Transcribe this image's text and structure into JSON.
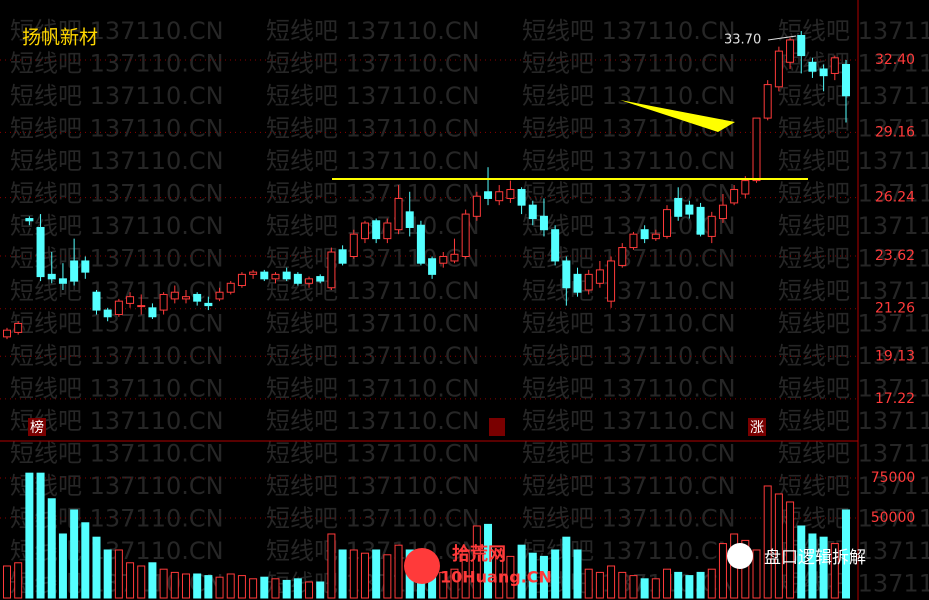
{
  "chart_data": {
    "type": "candlestick",
    "title": "扬帆新材",
    "watermark": "短线吧 137110.CN",
    "high_label": "33.70",
    "markers": [
      "榜",
      "",
      "涨"
    ],
    "logo_left": "拾荒网",
    "logo_left_url": "10Huang.CN",
    "logo_right": "盘口逻辑拆解",
    "up_color": "#ff3a3a",
    "down_color": "#54ffff",
    "open": [
      20.0,
      20.2,
      25.3,
      24.9,
      22.8,
      22.6,
      23.4,
      23.4,
      22.0,
      21.2,
      21.0,
      21.5,
      21.4,
      21.3,
      21.2,
      21.7,
      21.7,
      21.9,
      21.5,
      21.7,
      22.0,
      22.3,
      22.8,
      22.9,
      22.6,
      22.9,
      22.8,
      22.4,
      22.7,
      22.2,
      23.9,
      23.6,
      24.4,
      25.2,
      24.4,
      24.8,
      25.6,
      25.0,
      23.5,
      23.3,
      23.4,
      23.6,
      25.4,
      26.5,
      26.1,
      26.2,
      26.6,
      25.9,
      25.4,
      24.8,
      23.4,
      22.8,
      22.1,
      22.4,
      21.6,
      23.2,
      24.0,
      24.8,
      24.4,
      24.5,
      26.2,
      25.9,
      25.8,
      24.5,
      25.3,
      26.0,
      26.4,
      27.0,
      29.8,
      31.2,
      32.3,
      33.5,
      32.3,
      32.0,
      31.8,
      32.2
    ],
    "high": [
      20.4,
      20.7,
      25.4,
      25.5,
      23.8,
      23.3,
      24.4,
      23.6,
      22.1,
      21.3,
      21.7,
      22.0,
      21.9,
      21.5,
      22.0,
      22.3,
      22.1,
      22.0,
      21.8,
      22.2,
      22.5,
      22.9,
      23.0,
      23.0,
      22.9,
      23.1,
      22.9,
      22.7,
      22.8,
      24.0,
      24.1,
      24.8,
      25.2,
      25.3,
      25.3,
      26.8,
      26.5,
      25.2,
      23.6,
      23.8,
      24.4,
      25.7,
      26.5,
      27.6,
      26.8,
      27.0,
      26.7,
      26.1,
      26.2,
      25.0,
      23.6,
      23.1,
      23.0,
      23.4,
      23.6,
      24.2,
      24.7,
      25.0,
      24.8,
      25.9,
      26.7,
      26.1,
      26.0,
      25.6,
      26.4,
      26.8,
      27.2,
      29.8,
      31.5,
      33.0,
      33.4,
      33.7,
      32.5,
      32.2,
      32.6,
      32.4
    ],
    "low": [
      19.9,
      20.1,
      25.0,
      22.5,
      22.4,
      22.1,
      22.3,
      22.6,
      21.0,
      20.7,
      20.9,
      21.3,
      21.0,
      20.8,
      21.0,
      21.5,
      21.5,
      21.4,
      21.2,
      21.6,
      21.9,
      22.2,
      22.6,
      22.5,
      22.4,
      22.5,
      22.3,
      22.2,
      22.4,
      22.1,
      23.2,
      23.5,
      24.2,
      24.2,
      24.2,
      24.6,
      24.5,
      23.2,
      22.6,
      23.1,
      23.3,
      23.5,
      25.2,
      25.9,
      25.9,
      26.0,
      25.5,
      25.0,
      24.5,
      23.2,
      21.4,
      21.8,
      21.9,
      22.2,
      21.3,
      23.1,
      23.9,
      24.2,
      24.3,
      24.4,
      25.2,
      25.3,
      24.5,
      24.2,
      25.1,
      25.9,
      26.2,
      26.9,
      29.7,
      31.0,
      32.0,
      31.8,
      31.6,
      31.0,
      31.5,
      29.6
    ],
    "close": [
      20.3,
      20.6,
      25.2,
      22.7,
      22.6,
      22.4,
      22.5,
      22.9,
      21.2,
      20.9,
      21.6,
      21.8,
      21.4,
      20.9,
      21.9,
      22.0,
      21.8,
      21.6,
      21.4,
      22.0,
      22.4,
      22.8,
      22.9,
      22.6,
      22.8,
      22.6,
      22.4,
      22.6,
      22.5,
      23.8,
      23.3,
      24.6,
      25.1,
      24.4,
      25.1,
      26.2,
      24.9,
      23.3,
      22.8,
      23.6,
      23.7,
      25.5,
      26.3,
      26.2,
      26.5,
      26.6,
      25.9,
      25.3,
      24.8,
      23.4,
      22.2,
      22.0,
      22.8,
      23.0,
      23.4,
      24.0,
      24.6,
      24.4,
      24.6,
      25.7,
      25.4,
      25.5,
      24.6,
      25.4,
      25.9,
      26.6,
      27.0,
      29.8,
      31.3,
      32.8,
      33.3,
      32.6,
      31.9,
      31.7,
      32.5,
      30.8
    ],
    "volume": [
      20000,
      22000,
      78000,
      78000,
      62000,
      40000,
      55000,
      47000,
      38000,
      30000,
      30000,
      22000,
      20000,
      22000,
      18000,
      16000,
      15000,
      15000,
      14000,
      13000,
      15000,
      14000,
      12000,
      13000,
      12000,
      11000,
      12000,
      10000,
      10000,
      40000,
      30000,
      30000,
      28000,
      30000,
      27000,
      33000,
      30000,
      22000,
      20000,
      16000,
      18000,
      30000,
      45000,
      46000,
      30000,
      26000,
      33000,
      28000,
      26000,
      30000,
      38000,
      30000,
      18000,
      16000,
      20000,
      16000,
      14000,
      12000,
      12000,
      18000,
      16000,
      14000,
      16000,
      18000,
      34000,
      40000,
      36000,
      30000,
      70000,
      65000,
      60000,
      45000,
      40000,
      38000,
      34000,
      55000
    ],
    "reference_line": 27.07,
    "reference_color": "#ffff00",
    "ylim": [
      15.38,
      35.09
    ],
    "yticks": [
      {
        "value": 32.4,
        "label": "32.40"
      },
      {
        "value": 29.16,
        "label": "29.16"
      },
      {
        "value": 26.24,
        "label": "26.24"
      },
      {
        "value": 23.62,
        "label": "23.62"
      },
      {
        "value": 21.26,
        "label": "21.26"
      },
      {
        "value": 19.13,
        "label": "19.13"
      },
      {
        "value": 17.22,
        "label": "17.22"
      }
    ],
    "y2lim": [
      0,
      95600
    ],
    "y2ticks": [
      75000,
      50000
    ],
    "grid": true
  }
}
